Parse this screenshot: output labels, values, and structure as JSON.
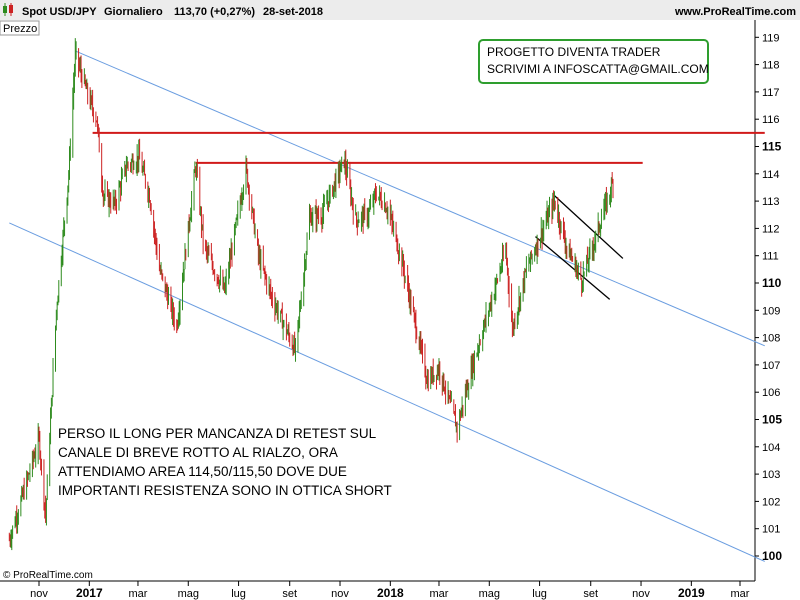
{
  "header": {
    "symbol": "Spot USD/JPY",
    "period": "Giornaliero",
    "last": "113,70 (+0,27%)",
    "date": "28-set-2018",
    "site": "www.ProRealTime.com"
  },
  "panel_label": "Prezzo",
  "copyright": "© ProRealTime.com",
  "colors": {
    "up": "#2e8b1e",
    "down": "#cc2222",
    "resistance": "#d11a1a",
    "channel": "#6a9de0",
    "short_channel": "#000000",
    "box_border": "#2e9e2e"
  },
  "chart_data": {
    "type": "candlestick",
    "instrument": "Spot USD/JPY",
    "timeframe": "Giornaliero",
    "ylim": [
      99.4,
      119.6
    ],
    "y_ticks": [
      {
        "v": 119,
        "label": "119",
        "bold": false
      },
      {
        "v": 118,
        "label": "118",
        "bold": false
      },
      {
        "v": 117,
        "label": "117",
        "bold": false
      },
      {
        "v": 116,
        "label": "116",
        "bold": false
      },
      {
        "v": 115,
        "label": "115",
        "bold": true
      },
      {
        "v": 114,
        "label": "114",
        "bold": false
      },
      {
        "v": 113,
        "label": "113",
        "bold": false
      },
      {
        "v": 112,
        "label": "112",
        "bold": false
      },
      {
        "v": 111,
        "label": "111",
        "bold": false
      },
      {
        "v": 110,
        "label": "110",
        "bold": true
      },
      {
        "v": 109,
        "label": "109",
        "bold": false
      },
      {
        "v": 108,
        "label": "108",
        "bold": false
      },
      {
        "v": 107,
        "label": "107",
        "bold": false
      },
      {
        "v": 106,
        "label": "106",
        "bold": false
      },
      {
        "v": 105,
        "label": "105",
        "bold": true
      },
      {
        "v": 104,
        "label": "104",
        "bold": false
      },
      {
        "v": 103,
        "label": "103",
        "bold": false
      },
      {
        "v": 102,
        "label": "102",
        "bold": false
      },
      {
        "v": 101,
        "label": "101",
        "bold": false
      },
      {
        "v": 100,
        "label": "100",
        "bold": true
      }
    ],
    "x_ticks": [
      {
        "date": "2016-11-01",
        "label": "nov",
        "bold": false
      },
      {
        "date": "2017-01-01",
        "label": "2017",
        "bold": true
      },
      {
        "date": "2017-03-01",
        "label": "mar",
        "bold": false
      },
      {
        "date": "2017-05-01",
        "label": "mag",
        "bold": false
      },
      {
        "date": "2017-07-01",
        "label": "lug",
        "bold": false
      },
      {
        "date": "2017-09-01",
        "label": "set",
        "bold": false
      },
      {
        "date": "2017-11-01",
        "label": "nov",
        "bold": false
      },
      {
        "date": "2018-01-01",
        "label": "2018",
        "bold": true
      },
      {
        "date": "2018-03-01",
        "label": "mar",
        "bold": false
      },
      {
        "date": "2018-05-01",
        "label": "mag",
        "bold": false
      },
      {
        "date": "2018-07-01",
        "label": "lug",
        "bold": false
      },
      {
        "date": "2018-09-01",
        "label": "set",
        "bold": false
      },
      {
        "date": "2018-11-01",
        "label": "nov",
        "bold": false
      },
      {
        "date": "2019-01-01",
        "label": "2019",
        "bold": true
      },
      {
        "date": "2019-03-01",
        "label": "mar",
        "bold": false
      }
    ],
    "price_path": [
      [
        "2016-09-26",
        100.6
      ],
      [
        "2016-10-15",
        102.5
      ],
      [
        "2016-11-01",
        104.3
      ],
      [
        "2016-11-09",
        101.5
      ],
      [
        "2016-11-22",
        109.0
      ],
      [
        "2016-12-07",
        114.0
      ],
      [
        "2016-12-15",
        118.4
      ],
      [
        "2016-12-30",
        116.9
      ],
      [
        "2017-01-10",
        116.0
      ],
      [
        "2017-01-18",
        113.2
      ],
      [
        "2017-02-01",
        112.9
      ],
      [
        "2017-02-15",
        114.3
      ],
      [
        "2017-03-02",
        114.6
      ],
      [
        "2017-03-15",
        113.2
      ],
      [
        "2017-03-27",
        110.5
      ],
      [
        "2017-04-17",
        108.4
      ],
      [
        "2017-05-10",
        114.3
      ],
      [
        "2017-05-20",
        111.3
      ],
      [
        "2017-06-14",
        109.7
      ],
      [
        "2017-07-10",
        114.2
      ],
      [
        "2017-07-25",
        111.0
      ],
      [
        "2017-08-10",
        109.5
      ],
      [
        "2017-09-08",
        107.5
      ],
      [
        "2017-09-25",
        112.4
      ],
      [
        "2017-10-10",
        112.5
      ],
      [
        "2017-11-06",
        114.5
      ],
      [
        "2017-11-20",
        112.3
      ],
      [
        "2017-12-05",
        112.5
      ],
      [
        "2017-12-15",
        113.3
      ],
      [
        "2017-12-29",
        112.7
      ],
      [
        "2018-01-15",
        110.8
      ],
      [
        "2018-02-15",
        106.4
      ],
      [
        "2018-03-01",
        106.9
      ],
      [
        "2018-03-23",
        104.7
      ],
      [
        "2018-04-10",
        106.9
      ],
      [
        "2018-05-21",
        111.2
      ],
      [
        "2018-05-29",
        108.3
      ],
      [
        "2018-06-15",
        110.5
      ],
      [
        "2018-07-19",
        113.0
      ],
      [
        "2018-08-03",
        111.3
      ],
      [
        "2018-08-21",
        110.1
      ],
      [
        "2018-09-05",
        111.5
      ],
      [
        "2018-09-28",
        113.7
      ]
    ],
    "resistances": [
      {
        "from": "2017-01-05",
        "to": "2019-03-31",
        "value": 115.5
      },
      {
        "from": "2017-05-10",
        "to": "2018-11-03",
        "value": 114.4
      }
    ],
    "channel_lines": [
      {
        "p1": [
          "2016-12-15",
          118.5
        ],
        "p2": [
          "2019-03-31",
          107.7
        ]
      },
      {
        "p1": [
          "2016-09-26",
          112.2
        ],
        "p2": [
          "2019-03-31",
          99.8
        ]
      }
    ],
    "short_channel": [
      {
        "p1": [
          "2018-07-19",
          113.2
        ],
        "p2": [
          "2018-10-10",
          110.9
        ]
      },
      {
        "p1": [
          "2018-06-26",
          111.7
        ],
        "p2": [
          "2018-09-24",
          109.4
        ]
      }
    ]
  },
  "annotations": {
    "box_line1": "PROGETTO DIVENTA TRADER",
    "box_line2": "SCRIVIMI A INFOSCATTA@GMAIL.COM",
    "note_line1": "PERSO IL LONG PER MANCANZA DI RETEST SUL",
    "note_line2": "CANALE DI BREVE ROTTO AL RIALZO, ORA",
    "note_line3": "ATTENDIAMO AREA 114,50/115,50 DOVE DUE",
    "note_line4": "IMPORTANTI RESISTENZA SONO IN OTTICA SHORT"
  }
}
